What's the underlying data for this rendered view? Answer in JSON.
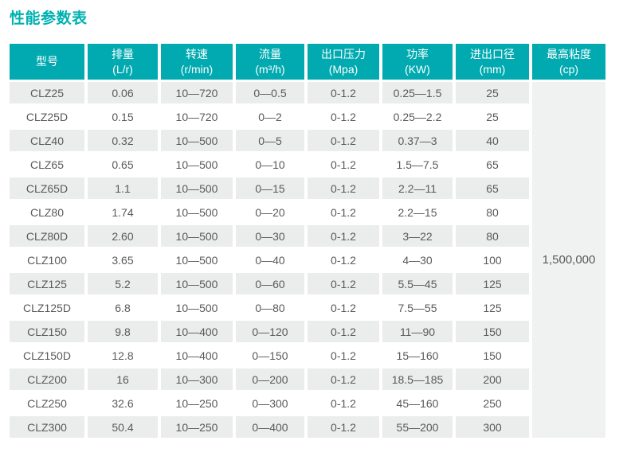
{
  "title": "性能参数表",
  "colors": {
    "accent_teal": "#00aab0",
    "title_teal": "#00b1b1",
    "row_alt_gray": "#ebecec",
    "merged_cell_gray": "#f0f1f1",
    "cell_text_gray": "#58595b",
    "header_text": "#ffffff"
  },
  "table": {
    "columns": [
      {
        "key": "model",
        "name": "型号",
        "unit": ""
      },
      {
        "key": "displacement",
        "name": "排量",
        "unit": "(L/r)"
      },
      {
        "key": "speed",
        "name": "转速",
        "unit": "(r/min)"
      },
      {
        "key": "flow",
        "name": "流量",
        "unit": "(m³/h)"
      },
      {
        "key": "outlet-pressure",
        "name": "出口压力",
        "unit": "(Mpa)"
      },
      {
        "key": "power",
        "name": "功率",
        "unit": "(KW)"
      },
      {
        "key": "port-diameter",
        "name": "进出口径",
        "unit": "(mm)"
      },
      {
        "key": "max-viscosity",
        "name": "最高粘度",
        "unit": "(cp)"
      }
    ],
    "rows": [
      [
        "CLZ25",
        "0.06",
        "10—720",
        "0—0.5",
        "0-1.2",
        "0.25—1.5",
        "25"
      ],
      [
        "CLZ25D",
        "0.15",
        "10—720",
        "0—2",
        "0-1.2",
        "0.25—2.2",
        "25"
      ],
      [
        "CLZ40",
        "0.32",
        "10—500",
        "0—5",
        "0-1.2",
        "0.37—3",
        "40"
      ],
      [
        "CLZ65",
        "0.65",
        "10—500",
        "0—10",
        "0-1.2",
        "1.5—7.5",
        "65"
      ],
      [
        "CLZ65D",
        "1.1",
        "10—500",
        "0—15",
        "0-1.2",
        "2.2—11",
        "65"
      ],
      [
        "CLZ80",
        "1.74",
        "10—500",
        "0—20",
        "0-1.2",
        "2.2—15",
        "80"
      ],
      [
        "CLZ80D",
        "2.60",
        "10—500",
        "0—30",
        "0-1.2",
        "3—22",
        "80"
      ],
      [
        "CLZ100",
        "3.65",
        "10—500",
        "0—40",
        "0-1.2",
        "4—30",
        "100"
      ],
      [
        "CLZ125",
        "5.2",
        "10—500",
        "0—60",
        "0-1.2",
        "5.5—45",
        "125"
      ],
      [
        "CLZ125D",
        "6.8",
        "10—500",
        "0—80",
        "0-1.2",
        "7.5—55",
        "125"
      ],
      [
        "CLZ150",
        "9.8",
        "10—400",
        "0—120",
        "0-1.2",
        "11—90",
        "150"
      ],
      [
        "CLZ150D",
        "12.8",
        "10—400",
        "0—150",
        "0-1.2",
        "15—160",
        "150"
      ],
      [
        "CLZ200",
        "16",
        "10—300",
        "0—200",
        "0-1.2",
        "18.5—185",
        "200"
      ],
      [
        "CLZ250",
        "32.6",
        "10—250",
        "0—300",
        "0-1.2",
        "45—160",
        "250"
      ],
      [
        "CLZ300",
        "50.4",
        "10—250",
        "0—400",
        "0-1.2",
        "55—200",
        "300"
      ]
    ],
    "merged_max_viscosity": "1,500,000"
  }
}
